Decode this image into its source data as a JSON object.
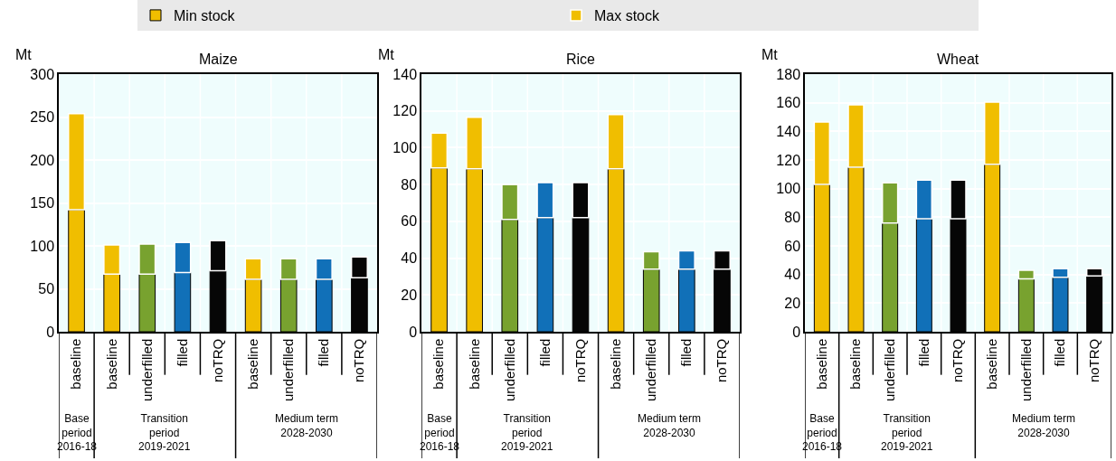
{
  "chart_data": [
    {
      "type": "bar",
      "title": "Maize",
      "ylabel": "Mt",
      "stacked": true,
      "grid": true,
      "legend": "top",
      "categories": [
        "baseline",
        "baseline",
        "underfilled",
        "filled",
        "noTRQ",
        "baseline",
        "underfilled",
        "filled",
        "noTRQ"
      ],
      "series": [
        {
          "name": "Min stock",
          "colors": [
            "#f0be00",
            "#f0be00",
            "#78a22f",
            "#1170b8",
            "#060606",
            "#f0be00",
            "#78a22f",
            "#1170b8",
            "#060606"
          ],
          "values": [
            142,
            67,
            67,
            69,
            71,
            61,
            61,
            61,
            63
          ]
        },
        {
          "name": "Max stock",
          "colors": [
            "#f0be00",
            "#f0be00",
            "#78a22f",
            "#1170b8",
            "#060606",
            "#f0be00",
            "#78a22f",
            "#1170b8",
            "#060606"
          ],
          "values": [
            112,
            34,
            35,
            35,
            35,
            24,
            24,
            24,
            24
          ]
        }
      ],
      "ylim": [
        0,
        300
      ],
      "yticks": [
        0,
        50,
        100,
        150,
        200,
        250,
        300
      ],
      "annotations": [
        "Base\nperiod\n2016-18",
        "Transition\nperiod\n2019-2021",
        "Medium term\n2028-2030"
      ]
    },
    {
      "type": "bar",
      "title": "Rice",
      "ylabel": "Mt",
      "stacked": true,
      "grid": true,
      "categories": [
        "baseline",
        "baseline",
        "underfilled",
        "filled",
        "noTRQ",
        "baseline",
        "underfilled",
        "filled",
        "noTRQ"
      ],
      "series": [
        {
          "colors": [
            "#f0be00",
            "#f0be00",
            "#78a22f",
            "#1170b8",
            "#060606",
            "#f0be00",
            "#78a22f",
            "#1170b8",
            "#060606"
          ],
          "values": [
            89,
            88.5,
            61,
            62,
            62,
            88.5,
            34,
            34,
            34
          ]
        },
        {
          "colors": [
            "#f0be00",
            "#f0be00",
            "#78a22f",
            "#1170b8",
            "#060606",
            "#f0be00",
            "#78a22f",
            "#1170b8",
            "#060606"
          ],
          "values": [
            19,
            28,
            19,
            19,
            19,
            29.5,
            9.5,
            10,
            10
          ]
        }
      ],
      "ylim": [
        0,
        140
      ],
      "yticks": [
        0,
        20,
        40,
        60,
        80,
        100,
        120,
        140
      ],
      "annotations": [
        "Base\nperiod\n2016-18",
        "Transition\nperiod\n2019-2021",
        "Medium term\n2028-2030"
      ]
    },
    {
      "type": "bar",
      "title": "Wheat",
      "ylabel": "Mt",
      "stacked": true,
      "grid": true,
      "categories": [
        "baseline",
        "baseline",
        "underfilled",
        "filled",
        "noTRQ",
        "baseline",
        "underfilled",
        "filled",
        "noTRQ"
      ],
      "series": [
        {
          "colors": [
            "#f0be00",
            "#f0be00",
            "#78a22f",
            "#1170b8",
            "#060606",
            "#f0be00",
            "#78a22f",
            "#1170b8",
            "#060606"
          ],
          "values": [
            103,
            115,
            76,
            79,
            79,
            117,
            37,
            38,
            39
          ]
        },
        {
          "colors": [
            "#f0be00",
            "#f0be00",
            "#78a22f",
            "#1170b8",
            "#060606",
            "#f0be00",
            "#78a22f",
            "#1170b8",
            "#060606"
          ],
          "values": [
            43.5,
            43.5,
            28,
            27,
            27,
            43.5,
            6,
            6,
            5
          ]
        }
      ],
      "ylim": [
        0,
        180
      ],
      "yticks": [
        0,
        20,
        40,
        60,
        80,
        100,
        120,
        140,
        160,
        180
      ],
      "annotations": [
        "Base\nperiod\n2016-18",
        "Transition\nperiod\n2019-2021",
        "Medium term\n2028-2030"
      ]
    }
  ]
}
